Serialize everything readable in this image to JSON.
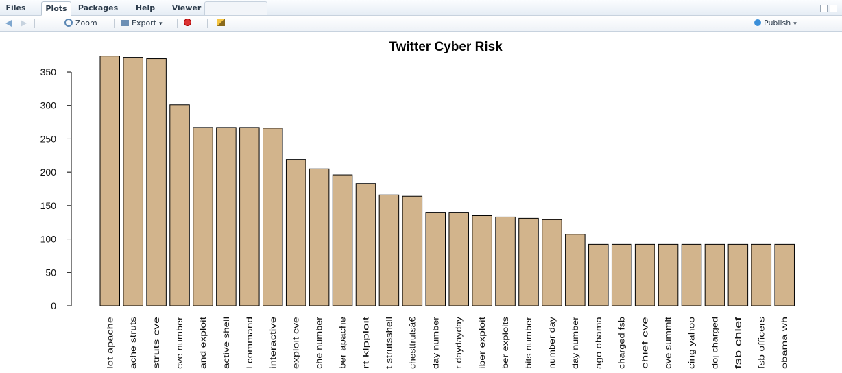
{
  "tabs": [
    "Files",
    "Plots",
    "Packages",
    "Help",
    "Viewer"
  ],
  "active_tab": "Plots",
  "toolbar": {
    "zoom_label": "Zoom",
    "export_label": "Export",
    "publish_label": "Publish"
  },
  "colors": {
    "bar_fill": "#d2b48c",
    "bar_stroke": "#000000",
    "toolbar_bg": "#eef2f7"
  },
  "chart_data": {
    "type": "bar",
    "title": "Twitter Cyber Risk",
    "xlabel": "",
    "ylabel": "",
    "ylim": [
      0,
      375
    ],
    "y_ticks": [
      0,
      50,
      100,
      150,
      200,
      250,
      300,
      350
    ],
    "categories": [
      "lot apache",
      "ache struts",
      "struts cve",
      "cve number",
      "and exploit",
      "active shell",
      "l command",
      "interactive",
      "exploit cve",
      "che number",
      "ber apache",
      "rt klpploit",
      "t strutsshell",
      "chesttrutsâ€",
      "day number",
      "r daydayday",
      "iber exploit",
      "ber exploits",
      "bits number",
      "number day",
      "day number",
      "ago obama",
      "charged fsb",
      "chief cve",
      "cve summit",
      "cing yahoo",
      "doj charged",
      "fsb chief",
      "fsb officers",
      "obama wh"
    ],
    "values": [
      374,
      372,
      370,
      301,
      267,
      267,
      267,
      266,
      219,
      205,
      196,
      183,
      166,
      164,
      140,
      140,
      135,
      133,
      131,
      129,
      107,
      92,
      92,
      92,
      92,
      92,
      92,
      92,
      92,
      92
    ]
  }
}
